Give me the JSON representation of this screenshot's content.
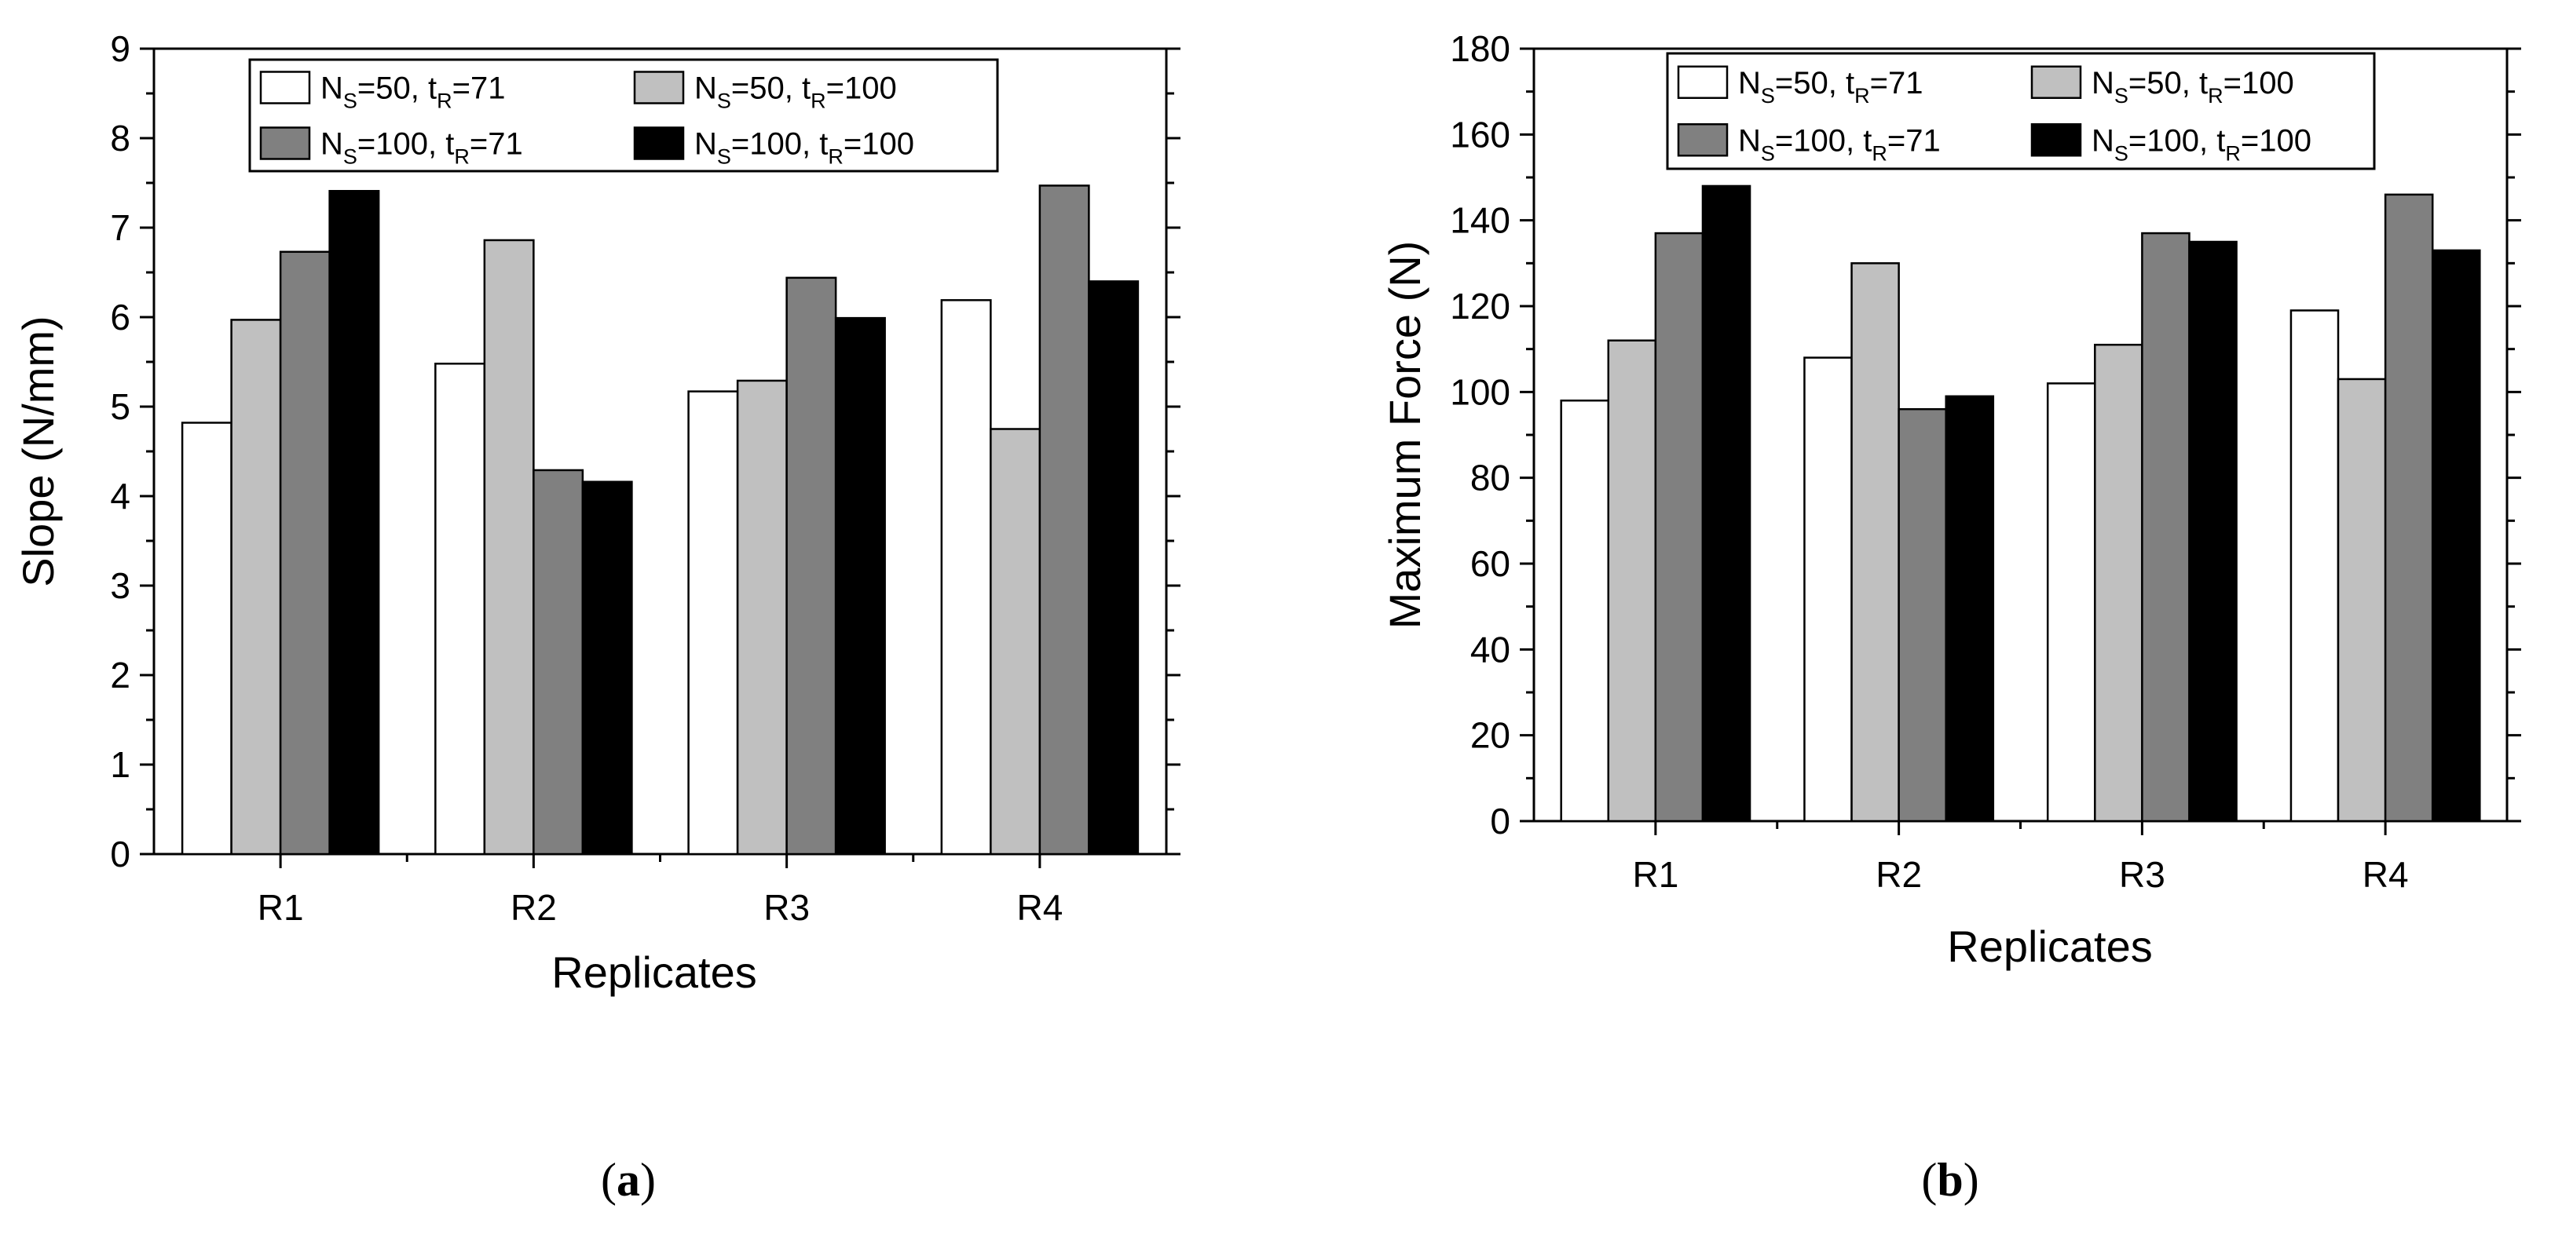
{
  "legend": [
    {
      "ns_sub": "S",
      "ns_val": "=50,",
      "t_sub": "R",
      "t_val": "=71",
      "color": "#ffffff"
    },
    {
      "ns_sub": "S",
      "ns_val": "=50,",
      "t_sub": "R",
      "t_val": "=100",
      "color": "#c0c0c0"
    },
    {
      "ns_sub": "S",
      "ns_val": "=100,",
      "t_sub": "R",
      "t_val": "=71",
      "color": "#808080"
    },
    {
      "ns_sub": "S",
      "ns_val": "=100,",
      "t_sub": "R",
      "t_val": "=100",
      "color": "#000000"
    }
  ],
  "chart_data": [
    {
      "type": "bar",
      "caption": {
        "open": "(",
        "letter": "a",
        "close": ")"
      },
      "title": "",
      "xlabel": "Replicates",
      "ylabel": "Slope (N/mm)",
      "ylim": [
        0,
        9
      ],
      "yticks": [
        0,
        1,
        2,
        3,
        4,
        5,
        6,
        7,
        8,
        9
      ],
      "categories": [
        "R1",
        "R2",
        "R3",
        "R4"
      ],
      "legend_position": "top",
      "series": [
        {
          "name": "NS=50, tR=71",
          "values": [
            4.82,
            5.48,
            5.17,
            6.19
          ]
        },
        {
          "name": "NS=50, tR=100",
          "values": [
            5.97,
            6.86,
            5.29,
            4.75
          ]
        },
        {
          "name": "NS=100,tR=71",
          "values": [
            6.73,
            4.29,
            6.44,
            7.47
          ]
        },
        {
          "name": "NS=100,tR=100",
          "values": [
            7.41,
            4.16,
            5.99,
            6.4
          ]
        }
      ]
    },
    {
      "type": "bar",
      "caption": {
        "open": "(",
        "letter": "b",
        "close": ")"
      },
      "title": "",
      "xlabel": "Replicates",
      "ylabel": "Maximum Force (N)",
      "ylim": [
        0,
        180
      ],
      "yticks": [
        0,
        20,
        40,
        60,
        80,
        100,
        120,
        140,
        160,
        180
      ],
      "categories": [
        "R1",
        "R2",
        "R3",
        "R4"
      ],
      "legend_position": "top",
      "series": [
        {
          "name": "NS=50, tR=71",
          "values": [
            98,
            108,
            102,
            119
          ]
        },
        {
          "name": "NS=50, tR=100",
          "values": [
            112,
            130,
            111,
            103
          ]
        },
        {
          "name": "NS=100,tR=71",
          "values": [
            137,
            96,
            137,
            146
          ]
        },
        {
          "name": "NS=100,tR=100",
          "values": [
            148,
            99,
            135,
            133
          ]
        }
      ]
    }
  ]
}
